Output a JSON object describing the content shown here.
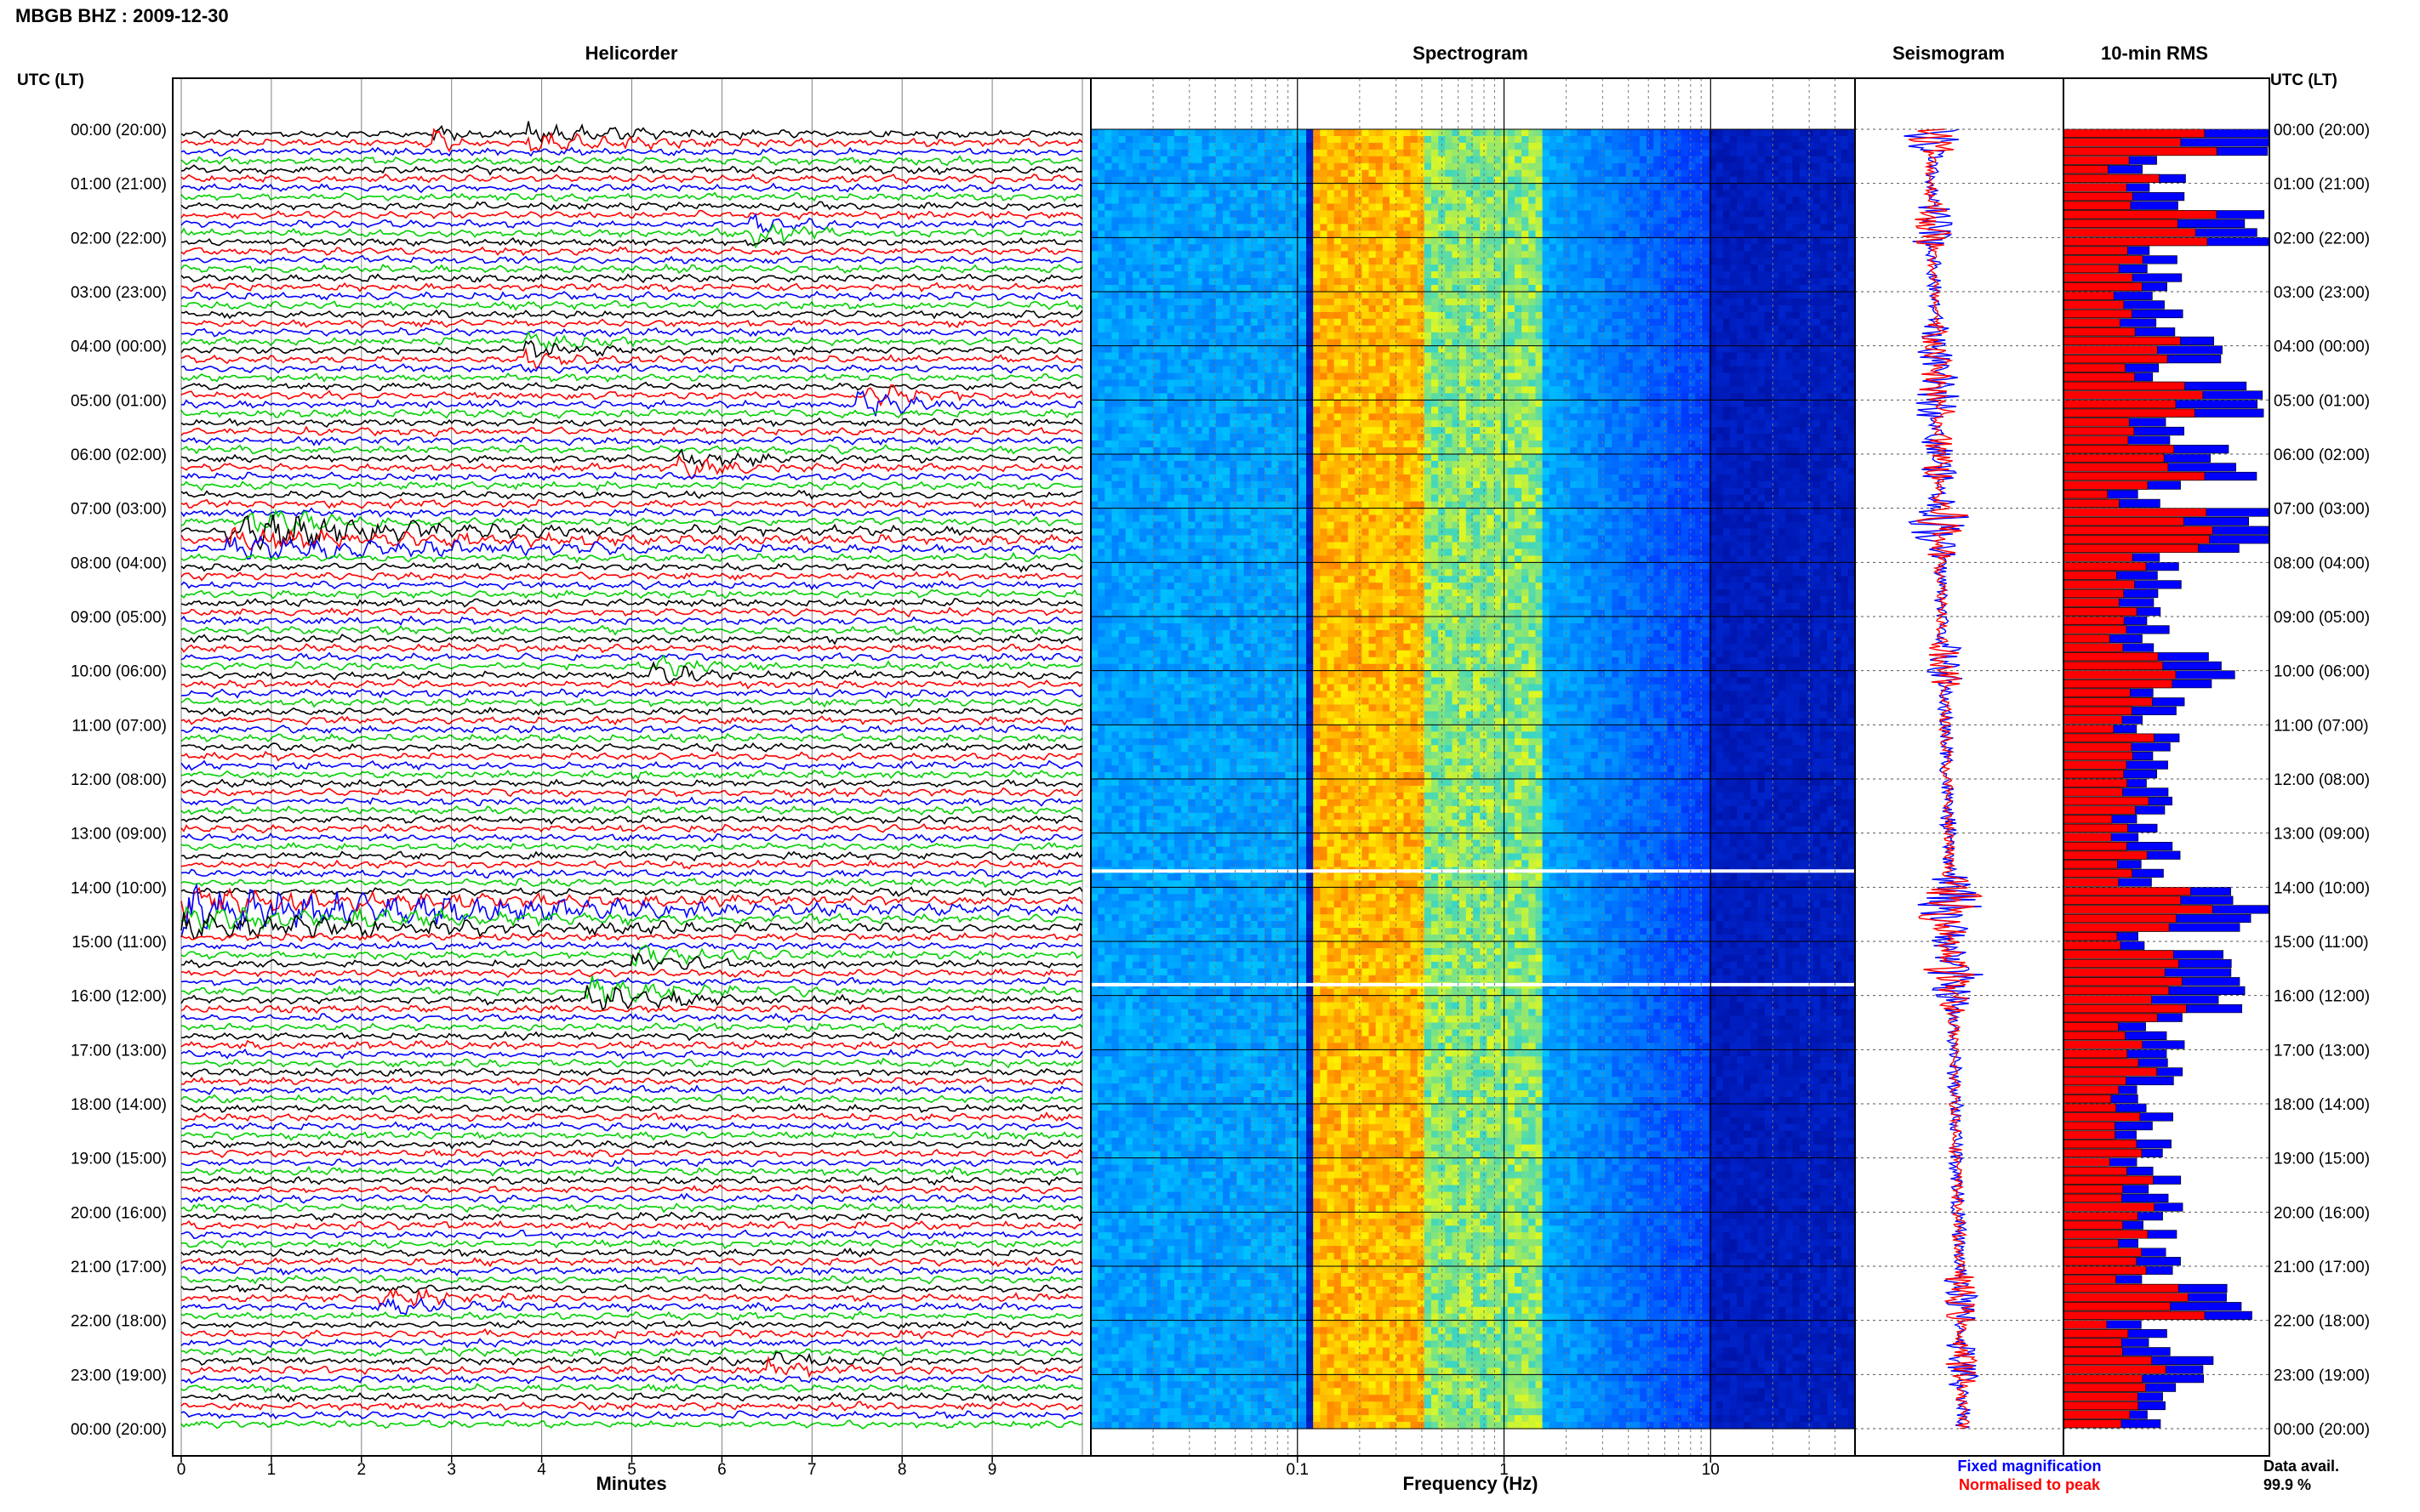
{
  "header": {
    "station_title": "MBGB BHZ : 2009-12-30",
    "utc_lt_left": "UTC (LT)",
    "utc_lt_right": "UTC (LT)"
  },
  "panels": {
    "helicorder": "Helicorder",
    "spectrogram": "Spectrogram",
    "seismogram": "Seismogram",
    "rms": "10-min RMS"
  },
  "legend": {
    "fixed": "Fixed magnification",
    "normalised": "Normalised to peak",
    "data_avail_label": "Data avail.",
    "data_avail_value": "99.9 %"
  },
  "colors": {
    "trace_cycle": [
      "#000000",
      "#ff0000",
      "#0000ff",
      "#00d000"
    ],
    "fixed": "#0000ff",
    "normalised": "#ff0000",
    "spec_low": "#00007f",
    "spec_mid": "#00c8ff",
    "spec_high": "#ffff00",
    "spec_peak": "#ff6000"
  },
  "chart_data": [
    {
      "type": "line",
      "title": "Helicorder",
      "xlabel": "Minutes",
      "ylabel": "",
      "xlim": [
        0,
        10
      ],
      "x_ticks": [
        "0",
        "1",
        "2",
        "3",
        "4",
        "5",
        "6",
        "7",
        "8",
        "9"
      ],
      "y_ticks_left": [
        "00:00 (20:00)",
        "01:00 (21:00)",
        "02:00 (22:00)",
        "03:00 (23:00)",
        "04:00 (00:00)",
        "05:00 (01:00)",
        "06:00 (02:00)",
        "07:00 (03:00)",
        "08:00 (04:00)",
        "09:00 (05:00)",
        "10:00 (06:00)",
        "11:00 (07:00)",
        "12:00 (08:00)",
        "13:00 (09:00)",
        "14:00 (10:00)",
        "15:00 (11:00)",
        "16:00 (12:00)",
        "17:00 (13:00)",
        "18:00 (14:00)",
        "19:00 (15:00)",
        "20:00 (16:00)",
        "21:00 (17:00)",
        "22:00 (18:00)",
        "23:00 (19:00)",
        "00:00 (20:00)"
      ],
      "rows_per_hour": 6,
      "hours": 24,
      "events": [
        {
          "hour": 0.0,
          "minute": 3.8,
          "duration": 3.0,
          "amp": 1.4
        },
        {
          "hour": 0.15,
          "minute": 2.8,
          "duration": 0.6,
          "amp": 1.6
        },
        {
          "hour": 1.75,
          "minute": 6.3,
          "duration": 1.2,
          "amp": 1.8
        },
        {
          "hour": 4.0,
          "minute": 3.8,
          "duration": 1.5,
          "amp": 1.4
        },
        {
          "hour": 4.9,
          "minute": 7.5,
          "duration": 1.6,
          "amp": 1.8
        },
        {
          "hour": 6.05,
          "minute": 5.5,
          "duration": 1.8,
          "amp": 1.4
        },
        {
          "hour": 7.2,
          "minute": 0.7,
          "duration": 2.6,
          "amp": 2.0
        },
        {
          "hour": 7.5,
          "minute": 0.5,
          "duration": 10.0,
          "amp": 1.2
        },
        {
          "hour": 9.9,
          "minute": 5.2,
          "duration": 1.4,
          "amp": 1.4
        },
        {
          "hour": 14.2,
          "minute": 0.0,
          "duration": 10.0,
          "amp": 1.8
        },
        {
          "hour": 14.5,
          "minute": 0.0,
          "duration": 10.0,
          "amp": 1.6
        },
        {
          "hour": 15.3,
          "minute": 5.0,
          "duration": 2.0,
          "amp": 1.5
        },
        {
          "hour": 15.9,
          "minute": 4.5,
          "duration": 3.0,
          "amp": 1.6
        },
        {
          "hour": 21.6,
          "minute": 2.2,
          "duration": 2.0,
          "amp": 1.3
        },
        {
          "hour": 22.8,
          "minute": 6.5,
          "duration": 1.5,
          "amp": 1.3
        }
      ]
    },
    {
      "type": "heatmap",
      "title": "Spectrogram",
      "xlabel": "Frequency (Hz)",
      "x_scale": "log",
      "xlim": [
        0.01,
        50
      ],
      "x_ticks": [
        "0.1",
        "1",
        "10"
      ],
      "ylim": [
        0,
        24
      ],
      "peak_band_hz": [
        0.12,
        0.4
      ],
      "gaps_hour": [
        13.7,
        15.8
      ]
    },
    {
      "type": "line",
      "title": "Seismogram",
      "series": [
        {
          "name": "Fixed magnification",
          "color": "#0000ff"
        },
        {
          "name": "Normalised to peak",
          "color": "#ff0000"
        }
      ]
    },
    {
      "type": "bar",
      "title": "10-min RMS",
      "orientation": "horizontal",
      "bins_per_hour": 6,
      "hours": 24,
      "series": [
        {
          "name": "Fixed magnification",
          "color": "#0000ff"
        },
        {
          "name": "Normalised to peak",
          "color": "#ff0000"
        }
      ]
    }
  ]
}
